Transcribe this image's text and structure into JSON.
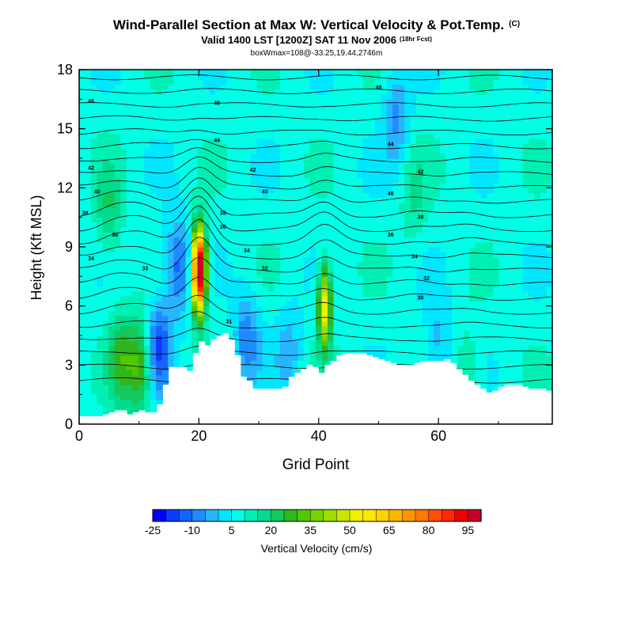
{
  "chart_data": {
    "type": "heatmap",
    "title": "Wind-Parallel Section at Max W: Vertical Velocity & Pot.Temp.",
    "title_mark": "(C)",
    "subtitle": "Valid 1400 LST [1200Z] SAT 11 Nov 2006",
    "subtitle_note": "(18hr Fcst)",
    "info_line": "boxWmax=108@-33.25,19.44,2746m",
    "xlabel": "Grid Point",
    "ylabel": "Height (Kft MSL)",
    "xlim": [
      0,
      79
    ],
    "ylim": [
      0,
      18
    ],
    "x_ticks": [
      "0",
      "20",
      "40",
      "60"
    ],
    "y_ticks": [
      "0",
      "3",
      "6",
      "9",
      "12",
      "15",
      "18"
    ],
    "colorbar": {
      "label": "Vertical Velocity (cm/s)",
      "tick_labels": [
        "-25",
        "-10",
        "5",
        "20",
        "35",
        "50",
        "65",
        "80",
        "95"
      ],
      "colors": [
        "#0000ff",
        "#0a3cff",
        "#1464ff",
        "#1e8cff",
        "#28b4ff",
        "#00e6ff",
        "#00ffe6",
        "#00f0b4",
        "#00dc8c",
        "#14c85a",
        "#32b41e",
        "#50c800",
        "#78d200",
        "#a0dc00",
        "#c8e600",
        "#f0f000",
        "#ffe600",
        "#ffd200",
        "#ffb400",
        "#ff9600",
        "#ff7800",
        "#ff5000",
        "#ff2800",
        "#f00000",
        "#c80028"
      ]
    },
    "theta_contour_labels": [
      "48",
      "46",
      "44",
      "42",
      "40",
      "38",
      "36",
      "34",
      "33",
      "32",
      "31",
      "30"
    ],
    "terrain_kft": [
      0.4,
      0.4,
      0.4,
      0.4,
      0.5,
      0.6,
      0.7,
      0.7,
      0.5,
      0.6,
      0.7,
      0.6,
      0.6,
      1.0,
      2.0,
      2.9,
      2.9,
      2.9,
      2.7,
      3.6,
      4.2,
      4.0,
      4.3,
      4.5,
      4.6,
      4.3,
      3.5,
      2.4,
      2.2,
      1.8,
      1.8,
      1.8,
      1.8,
      1.8,
      1.9,
      2.4,
      2.6,
      2.8,
      3.0,
      2.9,
      2.6,
      3.0,
      3.2,
      3.5,
      3.6,
      3.6,
      3.6,
      3.6,
      3.5,
      3.4,
      3.3,
      3.2,
      3.1,
      3.0,
      3.0,
      3.0,
      3.1,
      3.2,
      3.2,
      3.2,
      3.2,
      3.3,
      3.1,
      2.8,
      2.5,
      2.2,
      2.0,
      1.8,
      1.6,
      1.7,
      1.9,
      2.0,
      2.0,
      2.0,
      1.9,
      1.8,
      1.8,
      1.8,
      1.7,
      1.7
    ],
    "updraft_cores": [
      {
        "x": 20,
        "z": 7.8,
        "w": 108
      },
      {
        "x": 41,
        "z": 6.0,
        "w": 50
      },
      {
        "x": 10.5,
        "z": 3.0,
        "w": 28
      },
      {
        "x": 7,
        "z": 3.3,
        "w": 20
      },
      {
        "x": 5,
        "z": 10.8,
        "w": 14
      },
      {
        "x": 56,
        "z": 11.5,
        "w": 10
      },
      {
        "x": 65,
        "z": 2.5,
        "w": 10
      }
    ],
    "downdraft_cores": [
      {
        "x": 13,
        "z": 3.8,
        "w": -24
      },
      {
        "x": 16.5,
        "z": 8.0,
        "w": -18
      },
      {
        "x": 28,
        "z": 4.4,
        "w": -14
      },
      {
        "x": 35,
        "z": 3.8,
        "w": -8
      },
      {
        "x": 53,
        "z": 15.6,
        "w": -12
      },
      {
        "x": 60,
        "z": 4.0,
        "w": -8
      }
    ]
  }
}
